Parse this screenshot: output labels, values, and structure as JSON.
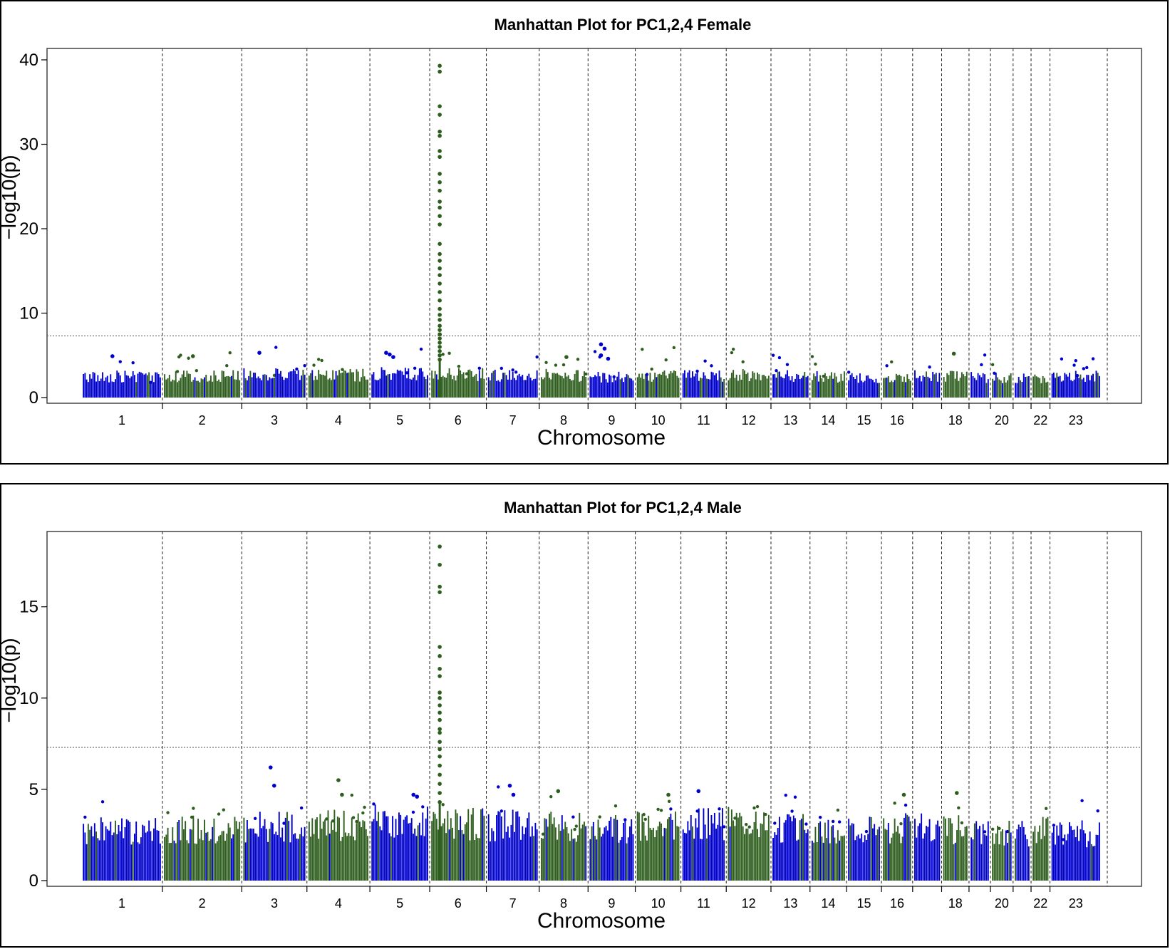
{
  "chart_data": [
    {
      "type": "scatter",
      "title": "Manhattan Plot for PC1,2,4 Female",
      "xlabel": "Chromosome",
      "ylabel": "−log10(p)",
      "ylim": [
        0,
        40
      ],
      "yticks": [
        0,
        10,
        20,
        30,
        40
      ],
      "significance_line": 7.3,
      "colors": [
        "#0000cc",
        "#2e5e1e"
      ],
      "chromosomes": [
        "1",
        "2",
        "3",
        "4",
        "5",
        "6",
        "7",
        "8",
        "9",
        "10",
        "11",
        "12",
        "13",
        "14",
        "15",
        "16",
        "17",
        "18",
        "19",
        "20",
        "21",
        "22",
        "23"
      ],
      "chromosome_tick_labels": [
        "1",
        "2",
        "3",
        "4",
        "5",
        "6",
        "7",
        "8",
        "9",
        "10",
        "11",
        "12",
        "13",
        "14",
        "15",
        "16",
        "",
        "18",
        "",
        "20",
        "",
        "22",
        "23"
      ],
      "baseline_max": [
        3.2,
        3.3,
        3.5,
        3.4,
        3.6,
        3.5,
        3.3,
        3.4,
        3.2,
        3.3,
        3.4,
        3.5,
        3.3,
        3.2,
        3.0,
        3.1,
        3.4,
        3.3,
        3.1,
        3.0,
        3.1,
        3.0,
        3.2
      ],
      "peaks": [
        {
          "chromosome": "6",
          "values": [
            39.3,
            38.6,
            34.5,
            33.5,
            31.5,
            31.0,
            29.2,
            28.5,
            26.5,
            25.5,
            24.5,
            23.2,
            22.5,
            21.5,
            20.5,
            18.2,
            17.0,
            16.2,
            15.3,
            14.5,
            13.5,
            12.5,
            11.5,
            10.5,
            9.8,
            9.2,
            8.5,
            8.0,
            7.5,
            7.0,
            6.5,
            6.0,
            5.5,
            5.0,
            4.5
          ]
        },
        {
          "chromosome": "9",
          "values": [
            6.3,
            5.8,
            4.6,
            5.0
          ]
        },
        {
          "chromosome": "2",
          "values": [
            4.9
          ]
        },
        {
          "chromosome": "3",
          "values": [
            5.3
          ]
        },
        {
          "chromosome": "5",
          "values": [
            5.3,
            5.1,
            4.8
          ]
        },
        {
          "chromosome": "1",
          "values": [
            4.9
          ]
        },
        {
          "chromosome": "18",
          "values": [
            5.2
          ]
        },
        {
          "chromosome": "8",
          "values": [
            4.8
          ]
        }
      ]
    },
    {
      "type": "scatter",
      "title": "Manhattan Plot for PC1,2,4 Male",
      "xlabel": "Chromosome",
      "ylabel": "−log10(p)",
      "ylim": [
        0,
        18.5
      ],
      "yticks": [
        0,
        5,
        10,
        15
      ],
      "significance_line": 7.3,
      "colors": [
        "#0000cc",
        "#2e5e1e"
      ],
      "chromosomes": [
        "1",
        "2",
        "3",
        "4",
        "5",
        "6",
        "7",
        "8",
        "9",
        "10",
        "11",
        "12",
        "13",
        "14",
        "15",
        "16",
        "17",
        "18",
        "19",
        "20",
        "21",
        "22",
        "23"
      ],
      "chromosome_tick_labels": [
        "1",
        "2",
        "3",
        "4",
        "5",
        "6",
        "7",
        "8",
        "9",
        "10",
        "11",
        "12",
        "13",
        "14",
        "15",
        "16",
        "",
        "18",
        "",
        "20",
        "",
        "22",
        "23"
      ],
      "baseline_max": [
        3.5,
        3.6,
        3.8,
        3.9,
        4.2,
        4.0,
        3.9,
        3.8,
        3.6,
        3.9,
        4.0,
        4.1,
        3.7,
        3.5,
        3.6,
        3.7,
        3.8,
        3.6,
        3.4,
        3.5,
        3.4,
        3.6,
        3.3
      ],
      "peaks": [
        {
          "chromosome": "6",
          "values": [
            18.3,
            17.3,
            16.1,
            15.8,
            12.8,
            12.3,
            11.6,
            11.2,
            10.3,
            10.0,
            9.6,
            9.2,
            8.8,
            8.3,
            8.1,
            7.6,
            7.2,
            6.8,
            6.3,
            5.8,
            5.3,
            4.8,
            4.3
          ]
        },
        {
          "chromosome": "3",
          "values": [
            6.2,
            5.2
          ]
        },
        {
          "chromosome": "4",
          "values": [
            5.5,
            4.7
          ]
        },
        {
          "chromosome": "5",
          "values": [
            4.7,
            4.6
          ]
        },
        {
          "chromosome": "7",
          "values": [
            5.2,
            4.7
          ]
        },
        {
          "chromosome": "8",
          "values": [
            4.9
          ]
        },
        {
          "chromosome": "10",
          "values": [
            4.7
          ]
        },
        {
          "chromosome": "11",
          "values": [
            4.9
          ]
        },
        {
          "chromosome": "16",
          "values": [
            4.7
          ]
        },
        {
          "chromosome": "18",
          "values": [
            4.8
          ]
        }
      ]
    }
  ]
}
